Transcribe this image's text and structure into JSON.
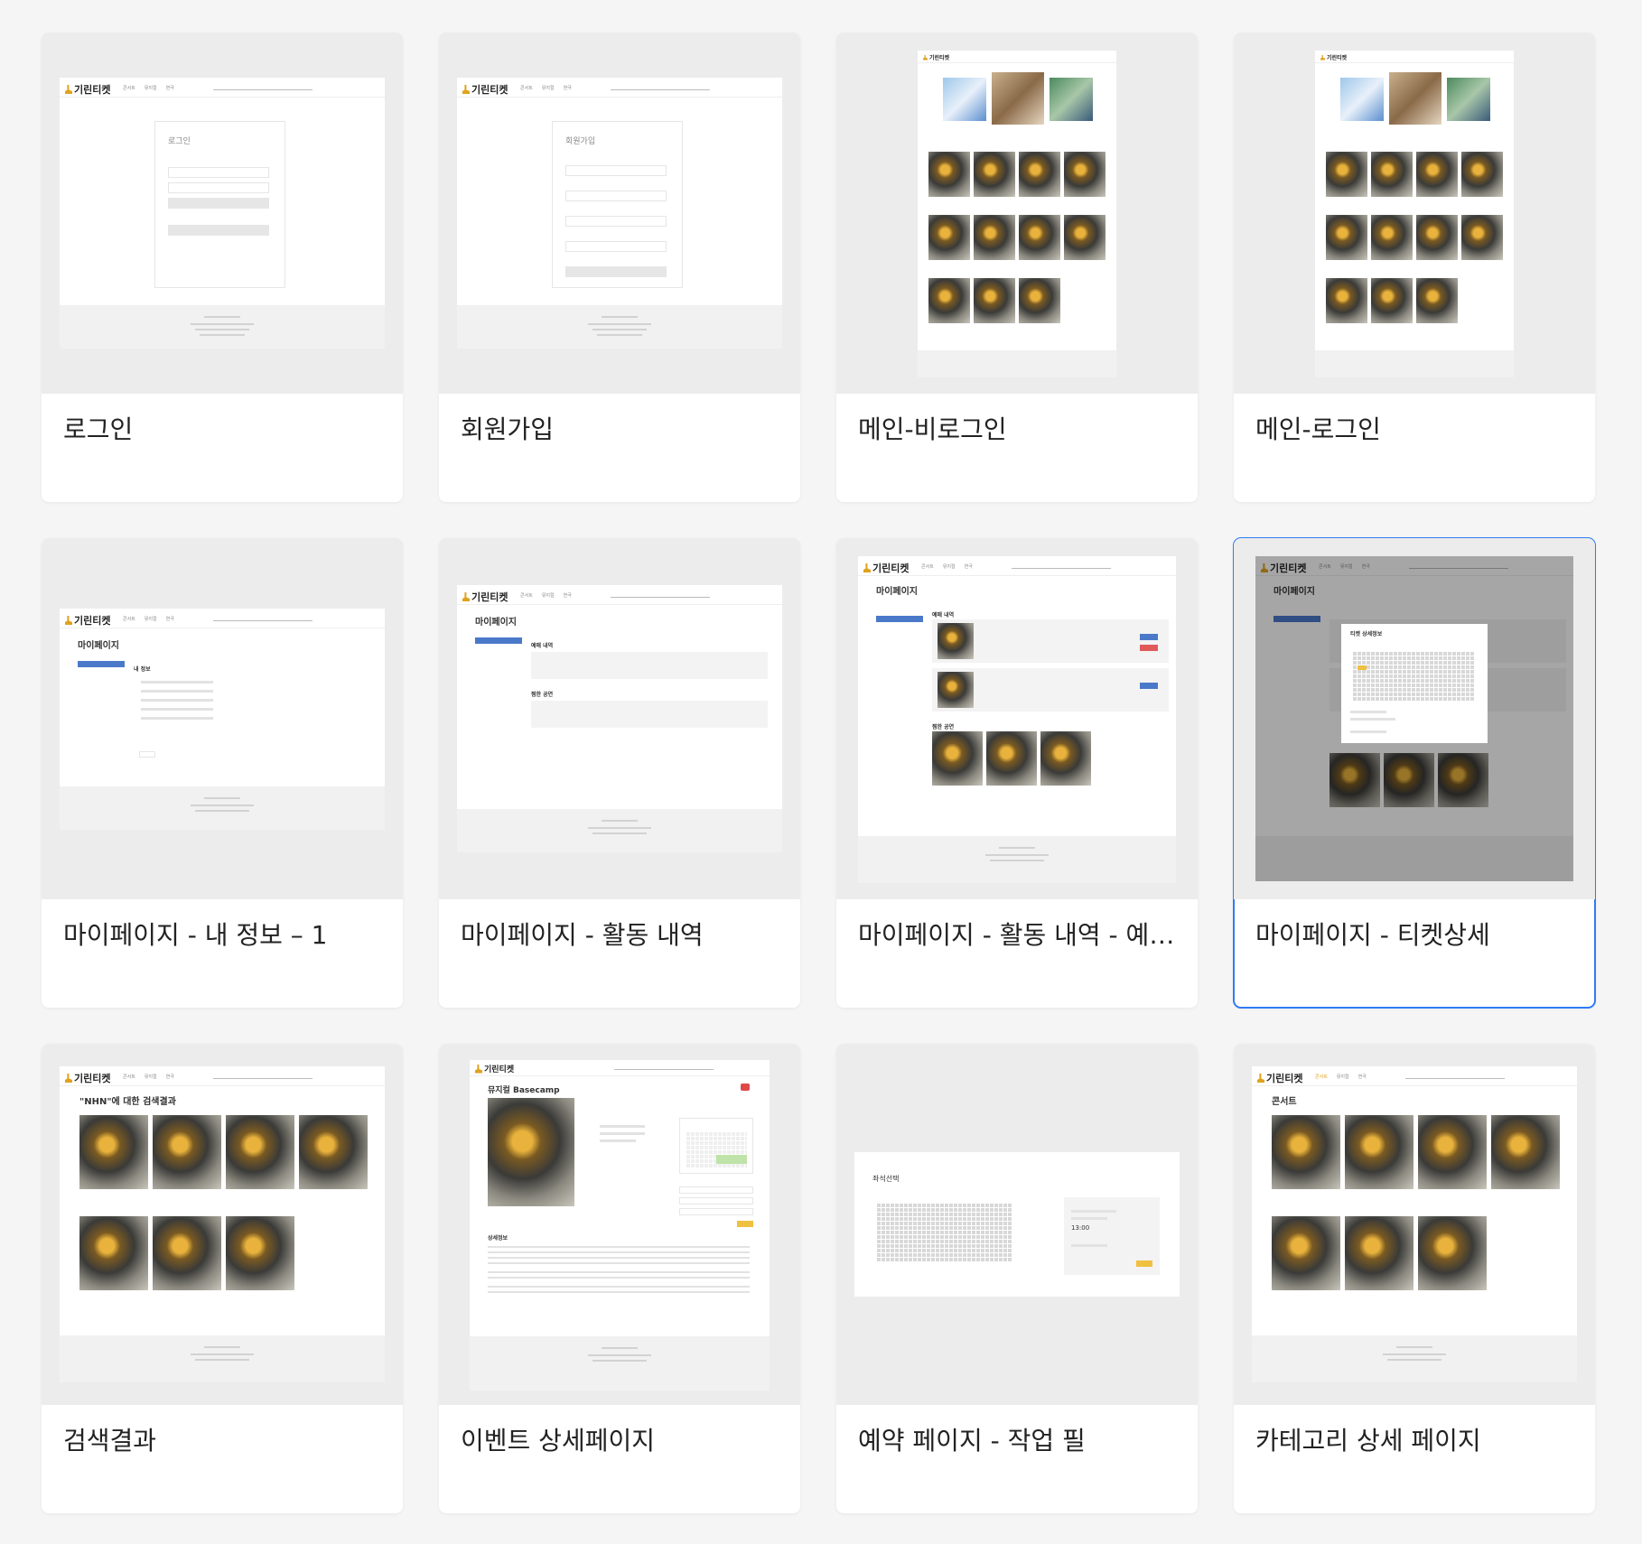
{
  "cards": [
    {
      "title": "로그인"
    },
    {
      "title": "회원가입"
    },
    {
      "title": "메인-비로그인"
    },
    {
      "title": "메인-로그인"
    },
    {
      "title": "마이페이지 - 내 정보 – 1"
    },
    {
      "title": "마이페이지 - 활동 내역"
    },
    {
      "title": "마이페이지 - 활동 내역 - 예매..."
    },
    {
      "title": "마이페이지 - 티켓상세"
    },
    {
      "title": "검색결과"
    },
    {
      "title": "이벤트 상세페이지"
    },
    {
      "title": "예약 페이지 - 작업 필"
    },
    {
      "title": "카테고리 상세 페이지"
    }
  ],
  "mini": {
    "logo": "기린티켓",
    "nav": [
      "콘서트",
      "뮤지컬",
      "연극"
    ],
    "login_title": "로그인",
    "signup_title": "회원가입",
    "mypage_title": "마이페이지",
    "my_info": "내 정보",
    "booking_history": "예매 내역",
    "viewed_shows": "찜한 공연",
    "ticket_detail": "티켓 상세정보",
    "search_title": "\"NHN\"에 대한 검색결과",
    "event_title": "뮤지컬 Basecamp",
    "detail_info": "상세정보",
    "seat_select": "좌석선택",
    "seat_time": "13:00",
    "category_title": "콘서트"
  },
  "selected_index": 7
}
